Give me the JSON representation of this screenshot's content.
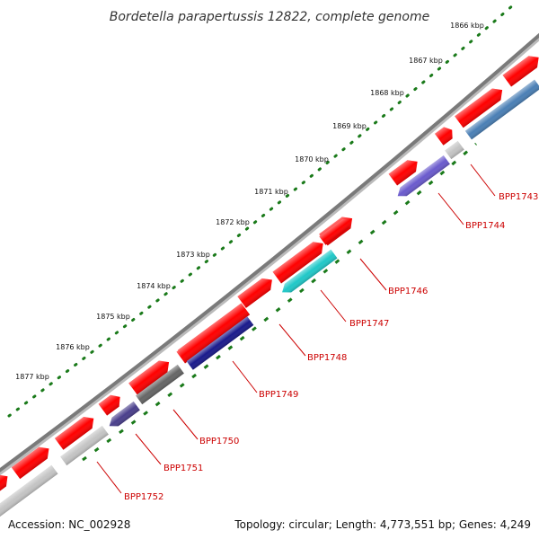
{
  "title": "Bordetella parapertussis 12822, complete genome",
  "footer": {
    "accession": "Accession: NC_002928",
    "summary": "Topology: circular; Length: 4,773,551 bp; Genes: 4,249"
  },
  "colors": {
    "backbone": "#7a7a7a",
    "forward_gene": "#ff0000",
    "label": "#cc0000",
    "tick": "#1a7a1a"
  },
  "ticks": [
    {
      "label": "1866 kbp"
    },
    {
      "label": "1867 kbp"
    },
    {
      "label": "1868 kbp"
    },
    {
      "label": "1869 kbp"
    },
    {
      "label": "1870 kbp"
    },
    {
      "label": "1871 kbp"
    },
    {
      "label": "1872 kbp"
    },
    {
      "label": "1873 kbp"
    },
    {
      "label": "1874 kbp"
    },
    {
      "label": "1875 kbp"
    },
    {
      "label": "1876 kbp"
    },
    {
      "label": "1877 kbp"
    }
  ],
  "forward_genes": [
    {
      "color": "#ff0000"
    },
    {
      "color": "#ff0000"
    },
    {
      "color": "#ff0000"
    },
    {
      "color": "#ff0000"
    },
    {
      "color": "#ff0000"
    },
    {
      "color": "#ff0000"
    },
    {
      "color": "#ff0000"
    },
    {
      "color": "#ff0000"
    },
    {
      "color": "#ff0000"
    },
    {
      "color": "#ff0000"
    },
    {
      "color": "#ff0000"
    },
    {
      "color": "#ff0000"
    },
    {
      "color": "#ff0000"
    }
  ],
  "reverse_genes": [
    {
      "name": "BPP1743",
      "color": "#4a7fb5"
    },
    {
      "name": "",
      "color": "#c4c4c4"
    },
    {
      "name": "BPP1744",
      "color": "#6a5acd"
    },
    {
      "name": "BPP1746",
      "color": "#ff0000"
    },
    {
      "name": "BPP1747",
      "color": "#20c8c8"
    },
    {
      "name": "BPP1748",
      "color": "#ff0000"
    },
    {
      "name": "BPP1749",
      "color": "#1a1a8c"
    },
    {
      "name": "BPP1750",
      "color": "#666666"
    },
    {
      "name": "BPP1751",
      "color": "#4a3f8c"
    },
    {
      "name": "BPP1752",
      "color": "#c4c4c4"
    },
    {
      "name": "",
      "color": "#c4c4c4"
    }
  ]
}
